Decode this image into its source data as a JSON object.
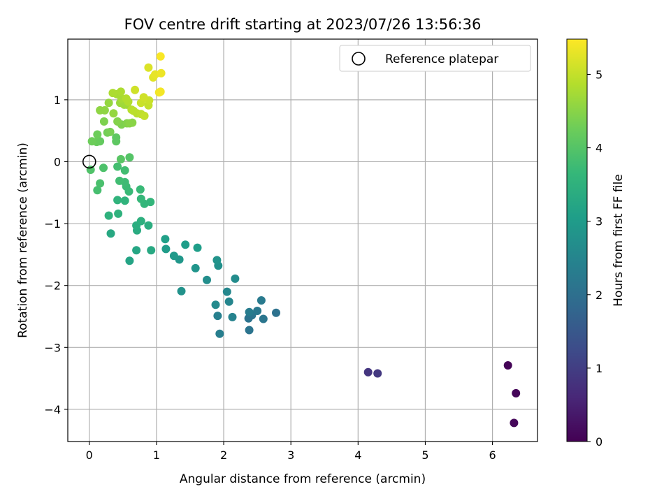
{
  "chart_data": {
    "type": "scatter",
    "title": "FOV centre drift starting at 2023/07/26 13:56:36",
    "xlabel": "Angular distance from reference (arcmin)",
    "ylabel": "Rotation from reference (arcmin)",
    "xlim": [
      -0.32,
      6.67
    ],
    "ylim": [
      -4.52,
      1.98
    ],
    "xticks": [
      0,
      1,
      2,
      3,
      4,
      5,
      6
    ],
    "yticks": [
      -4,
      -3,
      -2,
      -1,
      0,
      1
    ],
    "grid": true,
    "legend": {
      "placement": "top-right",
      "entries": [
        "Reference platepar"
      ]
    },
    "reference_point": {
      "x": 0,
      "y": 0
    },
    "colorbar": {
      "label": "Hours from first FF file",
      "colormap": "viridis",
      "range": [
        0,
        5.48
      ],
      "ticks": [
        0,
        1,
        2,
        3,
        4,
        5
      ]
    },
    "series": [
      {
        "points": [
          [
            6.23,
            -3.29,
            0.05
          ],
          [
            6.35,
            -3.74,
            0.08
          ],
          [
            6.32,
            -4.22,
            0.1
          ],
          [
            4.15,
            -3.4,
            0.85
          ],
          [
            4.29,
            -3.42,
            0.9
          ],
          [
            2.38,
            -2.72,
            2.1
          ],
          [
            2.59,
            -2.54,
            2.15
          ],
          [
            2.42,
            -2.48,
            2.12
          ],
          [
            2.37,
            -2.53,
            2.08
          ],
          [
            2.5,
            -2.41,
            2.2
          ],
          [
            2.78,
            -2.44,
            2.05
          ],
          [
            2.56,
            -2.24,
            2.25
          ],
          [
            2.38,
            -2.43,
            2.3
          ],
          [
            1.94,
            -2.78,
            2.35
          ],
          [
            1.91,
            -2.49,
            2.4
          ],
          [
            2.13,
            -2.51,
            2.45
          ],
          [
            2.08,
            -2.26,
            2.5
          ],
          [
            2.05,
            -2.1,
            2.55
          ],
          [
            1.88,
            -2.31,
            2.6
          ],
          [
            2.17,
            -1.89,
            2.65
          ],
          [
            1.75,
            -1.91,
            2.7
          ],
          [
            1.92,
            -1.68,
            2.75
          ],
          [
            1.9,
            -1.59,
            2.8
          ],
          [
            1.37,
            -2.09,
            2.78
          ],
          [
            1.58,
            -1.72,
            2.85
          ],
          [
            1.34,
            -1.58,
            2.9
          ],
          [
            1.26,
            -1.52,
            2.95
          ],
          [
            1.14,
            -1.41,
            3.0
          ],
          [
            1.43,
            -1.34,
            3.02
          ],
          [
            1.61,
            -1.39,
            3.05
          ],
          [
            1.13,
            -1.25,
            3.1
          ],
          [
            0.6,
            -1.6,
            3.2
          ],
          [
            0.7,
            -1.43,
            3.25
          ],
          [
            0.92,
            -1.43,
            3.3
          ],
          [
            0.32,
            -1.16,
            3.3
          ],
          [
            0.71,
            -1.11,
            3.35
          ],
          [
            0.7,
            -1.03,
            3.4
          ],
          [
            0.88,
            -1.03,
            3.4
          ],
          [
            0.77,
            -0.96,
            3.45
          ],
          [
            0.29,
            -0.87,
            3.5
          ],
          [
            0.43,
            -0.84,
            3.5
          ],
          [
            0.53,
            -0.63,
            3.55
          ],
          [
            0.42,
            -0.62,
            3.55
          ],
          [
            0.82,
            -0.68,
            3.6
          ],
          [
            0.91,
            -0.65,
            3.6
          ],
          [
            0.77,
            -0.6,
            3.65
          ],
          [
            0.76,
            -0.45,
            3.7
          ],
          [
            0.59,
            -0.48,
            3.7
          ],
          [
            0.55,
            -0.4,
            3.72
          ],
          [
            0.53,
            -0.33,
            3.75
          ],
          [
            0.45,
            -0.31,
            3.78
          ],
          [
            0.53,
            -0.14,
            3.8
          ],
          [
            0.42,
            -0.08,
            3.82
          ],
          [
            0.12,
            -0.46,
            3.85
          ],
          [
            0.16,
            -0.35,
            3.88
          ],
          [
            0.21,
            -0.1,
            3.92
          ],
          [
            0.02,
            -0.13,
            3.95
          ],
          [
            0.6,
            0.07,
            4.0
          ],
          [
            0.47,
            0.04,
            4.05
          ],
          [
            0.4,
            0.33,
            4.1
          ],
          [
            0.4,
            0.39,
            4.1
          ],
          [
            0.16,
            0.33,
            4.15
          ],
          [
            0.11,
            0.32,
            4.2
          ],
          [
            0.04,
            0.33,
            4.25
          ],
          [
            0.12,
            0.44,
            4.25
          ],
          [
            0.27,
            0.47,
            4.3
          ],
          [
            0.31,
            0.48,
            4.35
          ],
          [
            0.22,
            0.65,
            4.4
          ],
          [
            0.48,
            0.6,
            4.4
          ],
          [
            0.42,
            0.65,
            4.45
          ],
          [
            0.56,
            0.62,
            4.45
          ],
          [
            0.64,
            0.63,
            4.5
          ],
          [
            0.6,
            0.62,
            4.5
          ],
          [
            0.16,
            0.83,
            4.55
          ],
          [
            0.23,
            0.83,
            4.55
          ],
          [
            0.36,
            0.78,
            4.6
          ],
          [
            0.29,
            0.95,
            4.6
          ],
          [
            0.46,
            0.95,
            4.65
          ],
          [
            0.56,
            0.92,
            4.7
          ],
          [
            0.52,
            0.92,
            4.7
          ],
          [
            0.48,
            1.02,
            4.75
          ],
          [
            0.41,
            1.09,
            4.75
          ],
          [
            0.35,
            1.11,
            4.8
          ],
          [
            0.47,
            1.13,
            4.8
          ],
          [
            0.55,
            1.02,
            4.85
          ],
          [
            0.58,
            0.97,
            4.85
          ],
          [
            0.63,
            0.84,
            4.9
          ],
          [
            0.71,
            0.78,
            4.9
          ],
          [
            0.66,
            0.82,
            4.92
          ],
          [
            0.77,
            0.77,
            4.95
          ],
          [
            0.82,
            0.74,
            5.0
          ],
          [
            0.88,
            0.91,
            5.0
          ],
          [
            0.89,
            0.99,
            5.05
          ],
          [
            0.77,
            0.95,
            5.05
          ],
          [
            0.81,
            1.04,
            5.1
          ],
          [
            0.68,
            1.16,
            5.1
          ],
          [
            0.88,
            1.52,
            5.2
          ],
          [
            0.95,
            1.36,
            5.25
          ],
          [
            0.98,
            1.41,
            5.3
          ],
          [
            1.07,
            1.43,
            5.35
          ],
          [
            1.04,
            1.12,
            5.38
          ],
          [
            1.06,
            1.13,
            5.4
          ],
          [
            1.06,
            1.7,
            5.45
          ]
        ]
      }
    ]
  }
}
